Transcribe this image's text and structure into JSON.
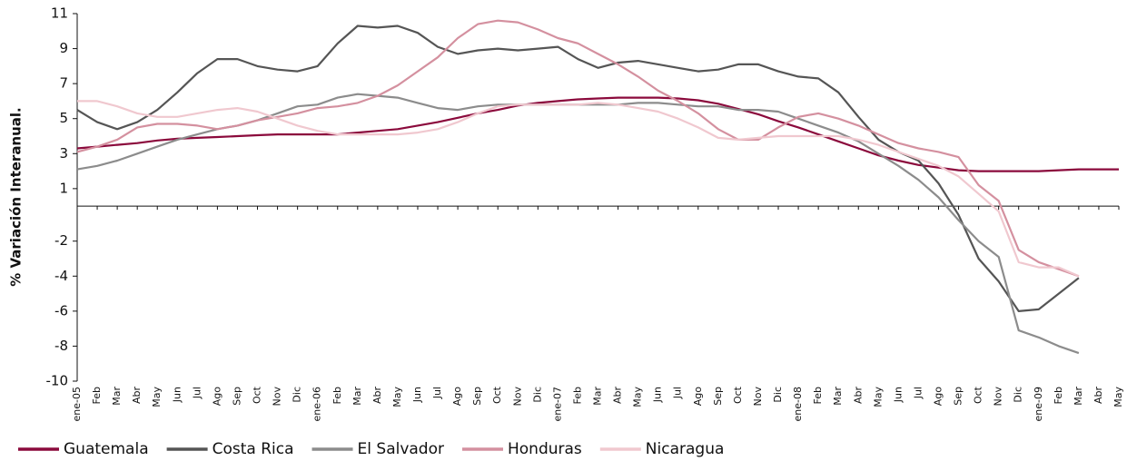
{
  "chart_data": {
    "type": "line",
    "y_label": "% Variación Interanual.",
    "categories": [
      "ene-05",
      "Feb",
      "Mar",
      "Abr",
      "May",
      "Jun",
      "Jul",
      "Ago",
      "Sep",
      "Oct",
      "Nov",
      "Dic",
      "ene-06",
      "Feb",
      "Mar",
      "Abr",
      "May",
      "Jun",
      "Jul",
      "Ago",
      "Sep",
      "Oct",
      "Nov",
      "Dic",
      "ene-07",
      "Feb",
      "Mar",
      "Abr",
      "May",
      "Jun",
      "Jul",
      "Ago",
      "Sep",
      "Oct",
      "Nov",
      "Dic",
      "ene-08",
      "Feb",
      "Mar",
      "Abr",
      "May",
      "Jun",
      "Jul",
      "Ago",
      "Sep",
      "Oct",
      "Nov",
      "Dic",
      "ene-09",
      "Feb",
      "Mar",
      "Abr",
      "May"
    ],
    "ylim": [
      -10,
      11
    ],
    "yticks": [
      11,
      9,
      7,
      5,
      3,
      1,
      -2,
      -4,
      -6,
      -8,
      -10
    ],
    "legend": "bottom-left",
    "series": [
      {
        "name": "Guatemala",
        "color": "#8b0a3c",
        "values": [
          3.3,
          3.4,
          3.5,
          3.6,
          3.75,
          3.85,
          3.9,
          3.95,
          4.0,
          4.05,
          4.1,
          4.1,
          4.1,
          4.1,
          4.2,
          4.3,
          4.4,
          4.6,
          4.8,
          5.05,
          5.3,
          5.5,
          5.75,
          5.9,
          6.0,
          6.1,
          6.15,
          6.2,
          6.2,
          6.2,
          6.15,
          6.05,
          5.85,
          5.55,
          5.25,
          4.85,
          4.5,
          4.1,
          3.7,
          3.3,
          2.9,
          2.6,
          2.35,
          2.2,
          2.05,
          2.0,
          2.0,
          2.0,
          2.0,
          2.05,
          2.1,
          2.1,
          2.1
        ]
      },
      {
        "name": "Costa Rica",
        "color": "#555555",
        "values": [
          5.5,
          4.8,
          4.4,
          4.8,
          5.5,
          6.5,
          7.6,
          8.4,
          8.4,
          8.0,
          7.8,
          7.7,
          8.0,
          9.3,
          10.3,
          10.2,
          10.3,
          9.9,
          9.1,
          8.7,
          8.9,
          9.0,
          8.9,
          9.0,
          9.1,
          8.4,
          7.9,
          8.2,
          8.3,
          8.1,
          7.9,
          7.7,
          7.8,
          8.1,
          8.1,
          7.7,
          7.4,
          7.3,
          6.5,
          5.1,
          3.8,
          3.1,
          2.6,
          1.3,
          -0.5,
          -3.0,
          -4.3,
          -6.0,
          -5.9,
          -5.0,
          -4.1,
          null,
          null
        ]
      },
      {
        "name": "El Salvador",
        "color": "#8c8c8c",
        "values": [
          2.1,
          2.3,
          2.6,
          3.0,
          3.4,
          3.8,
          4.1,
          4.4,
          4.6,
          4.9,
          5.3,
          5.7,
          5.8,
          6.2,
          6.4,
          6.3,
          6.2,
          5.9,
          5.6,
          5.5,
          5.7,
          5.8,
          5.8,
          5.8,
          5.8,
          5.8,
          5.8,
          5.8,
          5.9,
          5.9,
          5.8,
          5.7,
          5.7,
          5.5,
          5.5,
          5.4,
          5.0,
          4.6,
          4.2,
          3.7,
          3.0,
          2.3,
          1.5,
          0.5,
          -0.8,
          -2.0,
          -2.9,
          -7.1,
          -7.5,
          -8.0,
          -8.4,
          null,
          null
        ]
      },
      {
        "name": "Honduras",
        "color": "#d4909f",
        "values": [
          3.1,
          3.4,
          3.8,
          4.5,
          4.7,
          4.7,
          4.6,
          4.4,
          4.6,
          4.9,
          5.1,
          5.3,
          5.6,
          5.7,
          5.9,
          6.3,
          6.9,
          7.7,
          8.5,
          9.6,
          10.4,
          10.6,
          10.5,
          10.1,
          9.6,
          9.3,
          8.7,
          8.1,
          7.4,
          6.6,
          6.0,
          5.3,
          4.4,
          3.8,
          3.8,
          4.5,
          5.1,
          5.3,
          5.0,
          4.6,
          4.1,
          3.6,
          3.3,
          3.1,
          2.8,
          1.2,
          0.3,
          -2.5,
          -3.2,
          -3.6,
          -4.0,
          null,
          null
        ]
      },
      {
        "name": "Nicaragua",
        "color": "#f0c8cf",
        "values": [
          6.0,
          6.0,
          5.7,
          5.3,
          5.1,
          5.1,
          5.3,
          5.5,
          5.6,
          5.4,
          5.0,
          4.6,
          4.3,
          4.1,
          4.1,
          4.1,
          4.1,
          4.2,
          4.4,
          4.8,
          5.3,
          5.7,
          5.8,
          5.8,
          5.8,
          5.8,
          5.9,
          5.8,
          5.6,
          5.4,
          5.0,
          4.5,
          3.9,
          3.8,
          3.9,
          4.0,
          4.0,
          4.0,
          4.0,
          3.8,
          3.5,
          3.1,
          2.7,
          2.3,
          1.7,
          0.7,
          -0.3,
          -3.2,
          -3.5,
          -3.5,
          -4.0,
          null,
          null
        ]
      }
    ]
  }
}
